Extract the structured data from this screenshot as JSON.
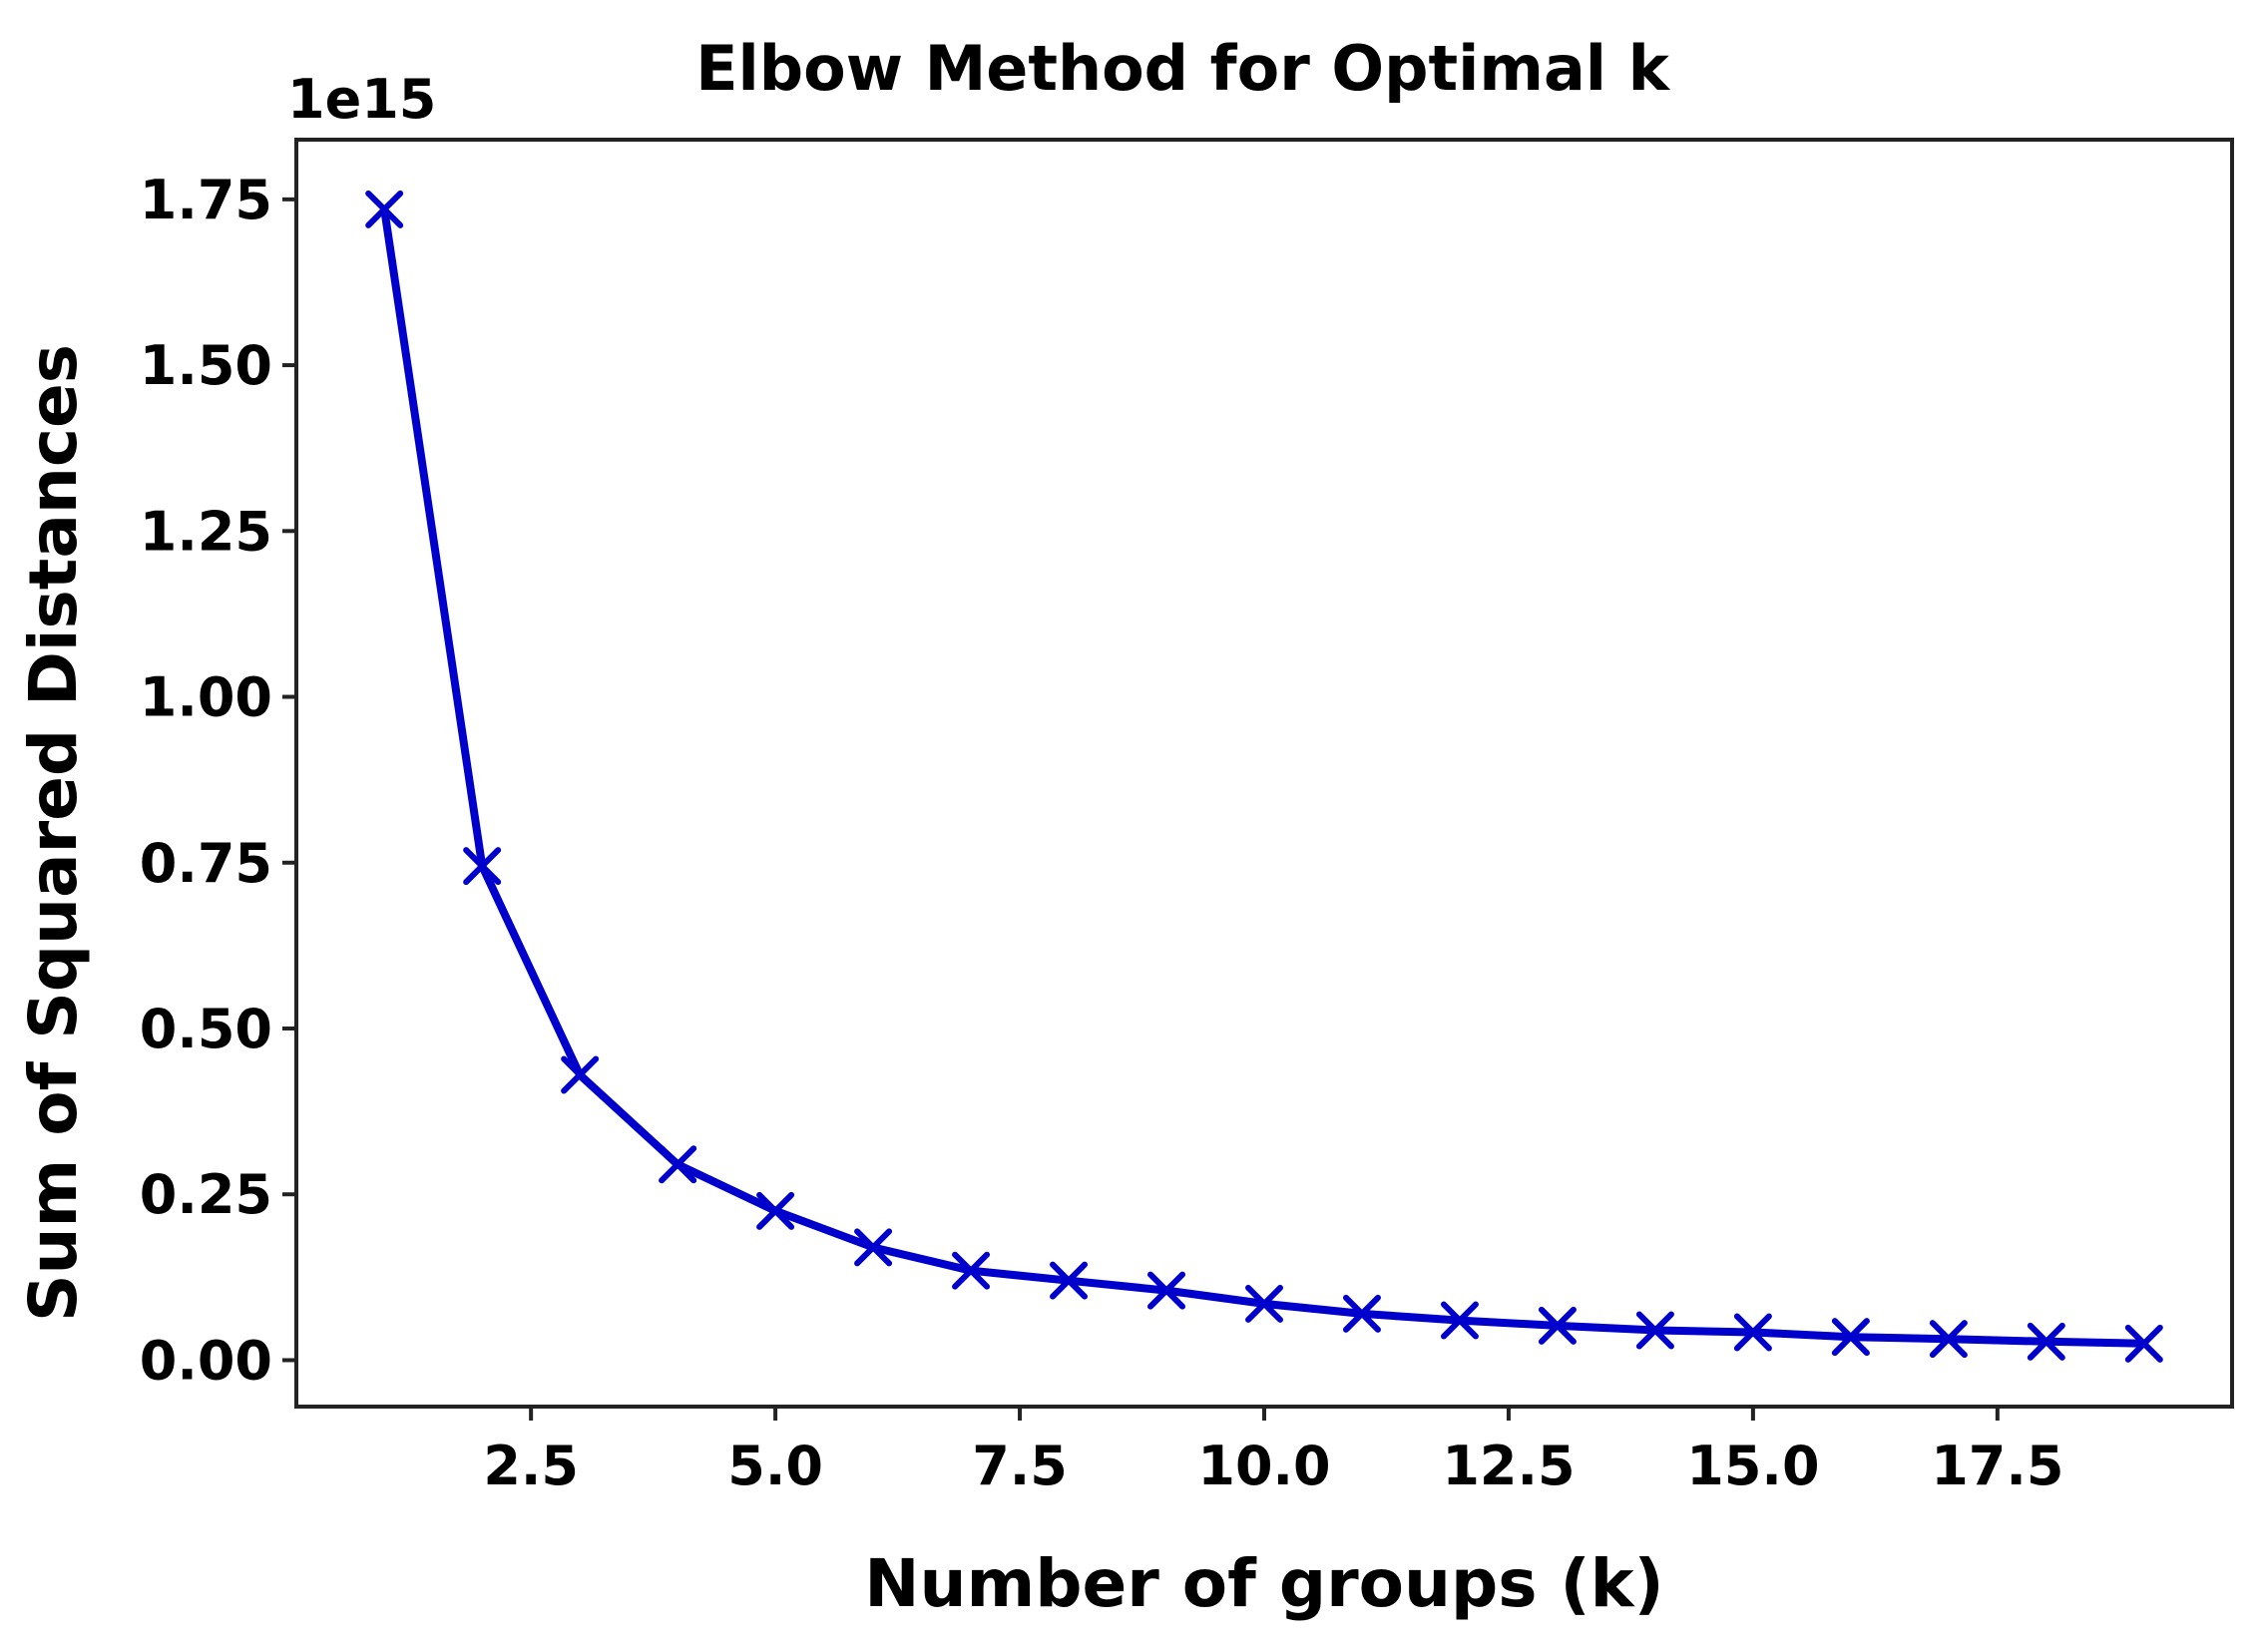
{
  "chart_data": {
    "type": "line",
    "title": "Elbow Method for Optimal k",
    "xlabel": "Number of groups (k)",
    "ylabel": "Sum of Squared Distances",
    "y_offset_label": "1e15",
    "xlim": [
      0.1,
      19.9
    ],
    "ylim": [
      -0.07,
      1.84
    ],
    "x_ticks": [
      2.5,
      5.0,
      7.5,
      10.0,
      12.5,
      15.0,
      17.5
    ],
    "x_tick_labels": [
      "2.5",
      "5.0",
      "7.5",
      "10.0",
      "12.5",
      "15.0",
      "17.5"
    ],
    "y_ticks": [
      0.0,
      0.25,
      0.5,
      0.75,
      1.0,
      1.25,
      1.5,
      1.75
    ],
    "y_tick_labels": [
      "0.00",
      "0.25",
      "0.50",
      "0.75",
      "1.00",
      "1.25",
      "1.50",
      "1.75"
    ],
    "grid": false,
    "series": [
      {
        "name": "Sum of Squared Distances",
        "color": "#0000cc",
        "marker": "x",
        "x": [
          1,
          2,
          3,
          4,
          5,
          6,
          7,
          8,
          9,
          10,
          11,
          12,
          13,
          14,
          15,
          16,
          17,
          18,
          19
        ],
        "values": [
          1.735,
          0.745,
          0.43,
          0.295,
          0.225,
          0.17,
          0.135,
          0.12,
          0.105,
          0.085,
          0.07,
          0.06,
          0.052,
          0.045,
          0.042,
          0.035,
          0.032,
          0.028,
          0.025
        ]
      }
    ]
  }
}
